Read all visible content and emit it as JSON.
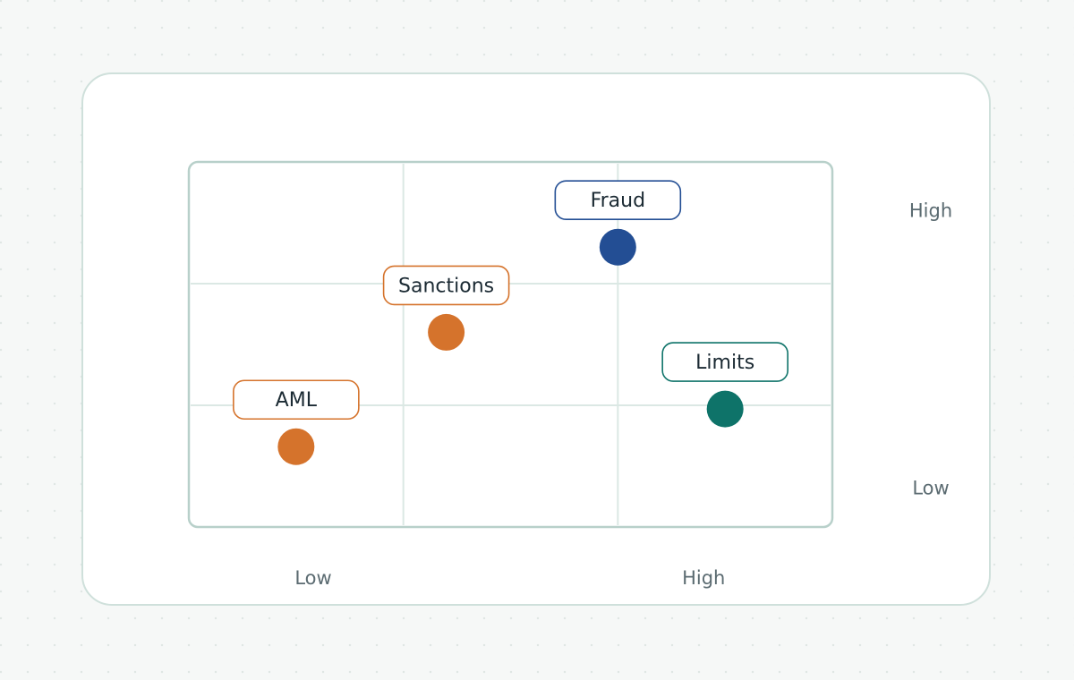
{
  "chart_data": {
    "type": "scatter",
    "title": "",
    "xlabel": "",
    "ylabel": "",
    "xlim": [
      0,
      3
    ],
    "ylim": [
      0,
      3
    ],
    "grid": true,
    "x_ticks": [
      {
        "value": 0.58,
        "label": "Low"
      },
      {
        "value": 2.4,
        "label": "High"
      }
    ],
    "y_ticks": [
      {
        "value": 2.6,
        "label": "High"
      },
      {
        "value": 0.32,
        "label": "Low"
      }
    ],
    "points": [
      {
        "label": "Fraud",
        "x": 2.0,
        "y": 2.3,
        "color": "#234e94"
      },
      {
        "label": "Sanctions",
        "x": 1.2,
        "y": 1.6,
        "color": "#d5732c"
      },
      {
        "label": "Limits",
        "x": 2.5,
        "y": 0.97,
        "color": "#0e7369"
      },
      {
        "label": "AML",
        "x": 0.5,
        "y": 0.66,
        "color": "#d5732c"
      }
    ]
  }
}
